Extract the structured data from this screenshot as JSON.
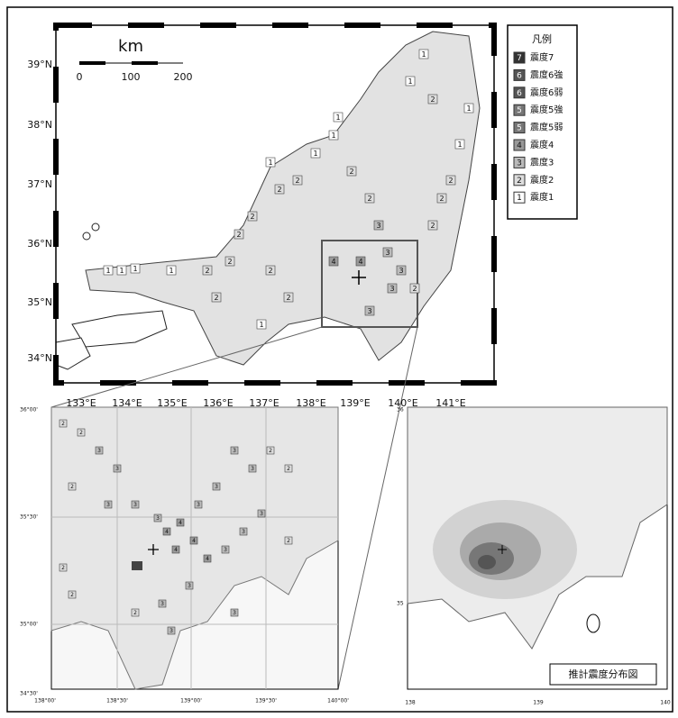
{
  "main_map": {
    "lat_labels": [
      "39°N",
      "38°N",
      "37°N",
      "36°N",
      "35°N",
      "34°N"
    ],
    "lon_labels": [
      "133°E",
      "134°E",
      "135°E",
      "136°E",
      "137°E",
      "138°E",
      "139°E",
      "140°E",
      "141°E"
    ],
    "scale": {
      "unit": "km",
      "ticks": [
        0,
        100,
        200
      ]
    },
    "stations": [
      1,
      1,
      1,
      1,
      2,
      2,
      2,
      2,
      1,
      2,
      2,
      1,
      1,
      1,
      2,
      2,
      3,
      3,
      3,
      2,
      2,
      2,
      2,
      1,
      1,
      1,
      1,
      2,
      2,
      2,
      1,
      2,
      4,
      4,
      3,
      3
    ]
  },
  "legend": {
    "title": "凡例",
    "items": [
      {
        "symbol": 7,
        "label": "震度7"
      },
      {
        "symbol": 6,
        "label": "震度6強"
      },
      {
        "symbol": 6,
        "label": "震度6弱"
      },
      {
        "symbol": 5,
        "label": "震度5強"
      },
      {
        "symbol": 5,
        "label": "震度5弱"
      },
      {
        "symbol": 4,
        "label": "震度4"
      },
      {
        "symbol": 3,
        "label": "震度3"
      },
      {
        "symbol": 2,
        "label": "震度2"
      },
      {
        "symbol": 1,
        "label": "震度1"
      }
    ]
  },
  "detail_map": {
    "lat_labels": [
      "36°00'",
      "35°30'",
      "35°00'",
      "34°30'"
    ],
    "lon_labels": [
      "138°00'",
      "138°30'",
      "139°00'",
      "139°30'",
      "140°00'"
    ],
    "stations": [
      2,
      2,
      3,
      3,
      2,
      3,
      3,
      3,
      4,
      4,
      3,
      3,
      4,
      4,
      3,
      3,
      3,
      2,
      2,
      3,
      3,
      4,
      3,
      3,
      2,
      2,
      3,
      2,
      3,
      2
    ]
  },
  "estimate_map": {
    "lat_labels": [
      "36",
      "35"
    ],
    "lon_labels": [
      "138",
      "139",
      "140"
    ],
    "caption": "推計震度分布図"
  }
}
